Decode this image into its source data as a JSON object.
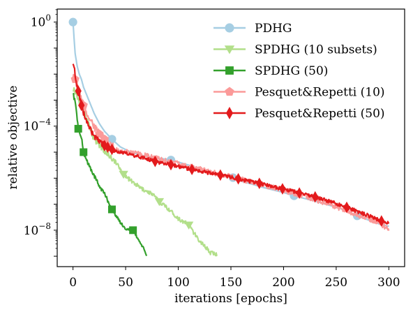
{
  "chart_data": {
    "type": "line",
    "xlabel": "iterations [epochs]",
    "ylabel": "relative objective",
    "xlim": [
      -15,
      315
    ],
    "ylim_log10": [
      -9.4,
      0.5
    ],
    "y_scale": "log",
    "x_ticks": [
      0,
      50,
      100,
      150,
      200,
      250,
      300
    ],
    "x_tick_labels": [
      "0",
      "50",
      "100",
      "150",
      "200",
      "250",
      "300"
    ],
    "y_ticks_log10": [
      0,
      -4,
      -8
    ],
    "y_tick_labels": [
      "10^0",
      "10^−4",
      "10^−8"
    ],
    "grid": false,
    "legend_position": "top-right",
    "series": [
      {
        "name": "PDHG",
        "color": "#a6cee3",
        "marker": "circle",
        "noise": 0,
        "x": [
          0,
          2,
          4,
          6,
          8,
          10,
          15,
          20,
          25,
          30,
          37,
          45,
          55,
          65,
          75,
          85,
          93,
          100,
          110,
          120,
          130,
          140,
          152,
          160,
          170,
          180,
          190,
          200,
          210,
          220,
          230,
          240,
          250,
          260,
          270,
          280,
          290,
          300
        ],
        "y_log10": [
          0,
          -1.2,
          -1.7,
          -2.0,
          -2.2,
          -2.5,
          -3.0,
          -3.5,
          -3.9,
          -4.2,
          -4.5,
          -4.8,
          -5.0,
          -5.12,
          -5.2,
          -5.25,
          -5.3,
          -5.38,
          -5.5,
          -5.65,
          -5.75,
          -5.87,
          -5.98,
          -6.12,
          -6.23,
          -6.35,
          -6.45,
          -6.55,
          -6.68,
          -6.78,
          -6.88,
          -7.0,
          -7.12,
          -7.25,
          -7.45,
          -7.6,
          -7.75,
          -7.85
        ],
        "marker_x": [
          0,
          37,
          93,
          152,
          210,
          270
        ]
      },
      {
        "name": "SPDHG (10 subsets)",
        "color": "#b2df8a",
        "marker": "triangle-down",
        "noise": 0.16,
        "x": [
          0,
          5,
          10,
          15,
          20,
          25,
          30,
          35,
          40,
          48,
          55,
          65,
          75,
          82,
          90,
          100,
          110,
          118,
          125,
          130,
          137
        ],
        "y_log10": [
          -2.5,
          -2.9,
          -3.4,
          -3.9,
          -4.5,
          -4.75,
          -4.95,
          -5.15,
          -5.35,
          -5.85,
          -6.1,
          -6.4,
          -6.6,
          -6.9,
          -7.15,
          -7.55,
          -7.8,
          -8.3,
          -8.6,
          -8.85,
          -8.95
        ],
        "marker_x": [
          48,
          82,
          110
        ]
      },
      {
        "name": "SPDHG (50)",
        "color": "#33a02c",
        "marker": "square",
        "noise": 0.09,
        "x": [
          0,
          3,
          5,
          8,
          10,
          15,
          20,
          25,
          30,
          37,
          45,
          50,
          57,
          62,
          67,
          70
        ],
        "y_log10": [
          -2.7,
          -3.3,
          -4.1,
          -4.45,
          -5.0,
          -5.5,
          -5.9,
          -6.3,
          -6.6,
          -7.2,
          -7.7,
          -7.95,
          -8.0,
          -8.35,
          -8.7,
          -9.0
        ],
        "marker_x": [
          5,
          10,
          37,
          57
        ]
      },
      {
        "name": "Pesquet&Repetti (10)",
        "color": "#fb9a99",
        "marker": "pentagon",
        "noise": 0.2,
        "x": [
          0,
          2,
          4,
          6,
          8,
          10,
          13,
          16,
          20,
          25,
          30,
          35,
          40,
          50,
          60,
          70,
          80,
          90,
          100,
          115,
          130,
          145,
          160,
          175,
          190,
          200,
          210,
          220,
          230,
          240,
          250,
          260,
          270,
          280,
          290,
          300
        ],
        "y_log10": [
          -2.0,
          -2.2,
          -2.5,
          -2.7,
          -3.0,
          -3.2,
          -3.5,
          -3.7,
          -4.0,
          -4.3,
          -4.5,
          -4.7,
          -4.9,
          -5.0,
          -5.05,
          -5.15,
          -5.25,
          -5.35,
          -5.45,
          -5.6,
          -5.75,
          -5.9,
          -6.05,
          -6.2,
          -6.35,
          -6.45,
          -6.6,
          -6.7,
          -6.82,
          -6.95,
          -7.1,
          -7.25,
          -7.4,
          -7.55,
          -7.7,
          -7.95
        ],
        "marker_x": [
          2,
          10,
          25,
          30
        ]
      },
      {
        "name": "Pesquet&Repetti (50)",
        "color": "#e31a1c",
        "marker": "diamond",
        "noise": 0.14,
        "x": [
          0,
          2,
          4,
          6,
          8,
          10,
          13,
          16,
          20,
          25,
          30,
          35,
          40,
          50,
          60,
          70,
          80,
          90,
          100,
          115,
          130,
          145,
          160,
          175,
          190,
          200,
          210,
          220,
          230,
          240,
          250,
          260,
          270,
          280,
          290,
          300
        ],
        "y_log10": [
          -1.5,
          -2.0,
          -2.5,
          -2.8,
          -3.2,
          -3.5,
          -3.8,
          -4.1,
          -4.4,
          -4.6,
          -4.75,
          -4.85,
          -4.95,
          -5.05,
          -5.15,
          -5.25,
          -5.38,
          -5.45,
          -5.55,
          -5.68,
          -5.8,
          -5.92,
          -6.05,
          -6.18,
          -6.32,
          -6.42,
          -6.52,
          -6.62,
          -6.72,
          -6.85,
          -6.98,
          -7.12,
          -7.28,
          -7.43,
          -7.6,
          -7.75
        ],
        "marker_x": [
          5,
          8,
          30,
          33,
          37,
          78,
          93,
          113,
          140,
          157,
          177,
          199,
          215,
          230,
          260,
          293
        ]
      }
    ]
  }
}
